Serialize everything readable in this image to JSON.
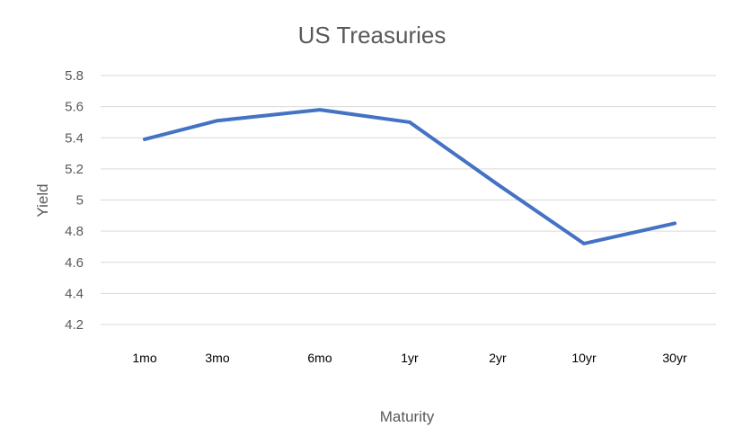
{
  "chart_data": {
    "type": "line",
    "title": "US Treasuries",
    "xlabel": "Maturity",
    "ylabel": "Yield",
    "categories": [
      "1mo",
      "3mo",
      "6mo",
      "1yr",
      "2yr",
      "10yr",
      "30yr"
    ],
    "series": [
      {
        "values": [
          5.39,
          5.51,
          5.58,
          5.5,
          5.1,
          4.72,
          4.85
        ],
        "color": "#4472c4"
      }
    ],
    "ylim": [
      4.2,
      5.8
    ],
    "yticks": [
      4.2,
      4.4,
      4.6,
      4.8,
      5.0,
      5.2,
      5.4,
      5.6,
      5.8
    ],
    "ytick_labels": [
      "4.2",
      "4.4",
      "4.6",
      "4.8",
      "5",
      "5.2",
      "5.4",
      "5.6",
      "5.8"
    ],
    "grid": true,
    "legend": "none"
  }
}
